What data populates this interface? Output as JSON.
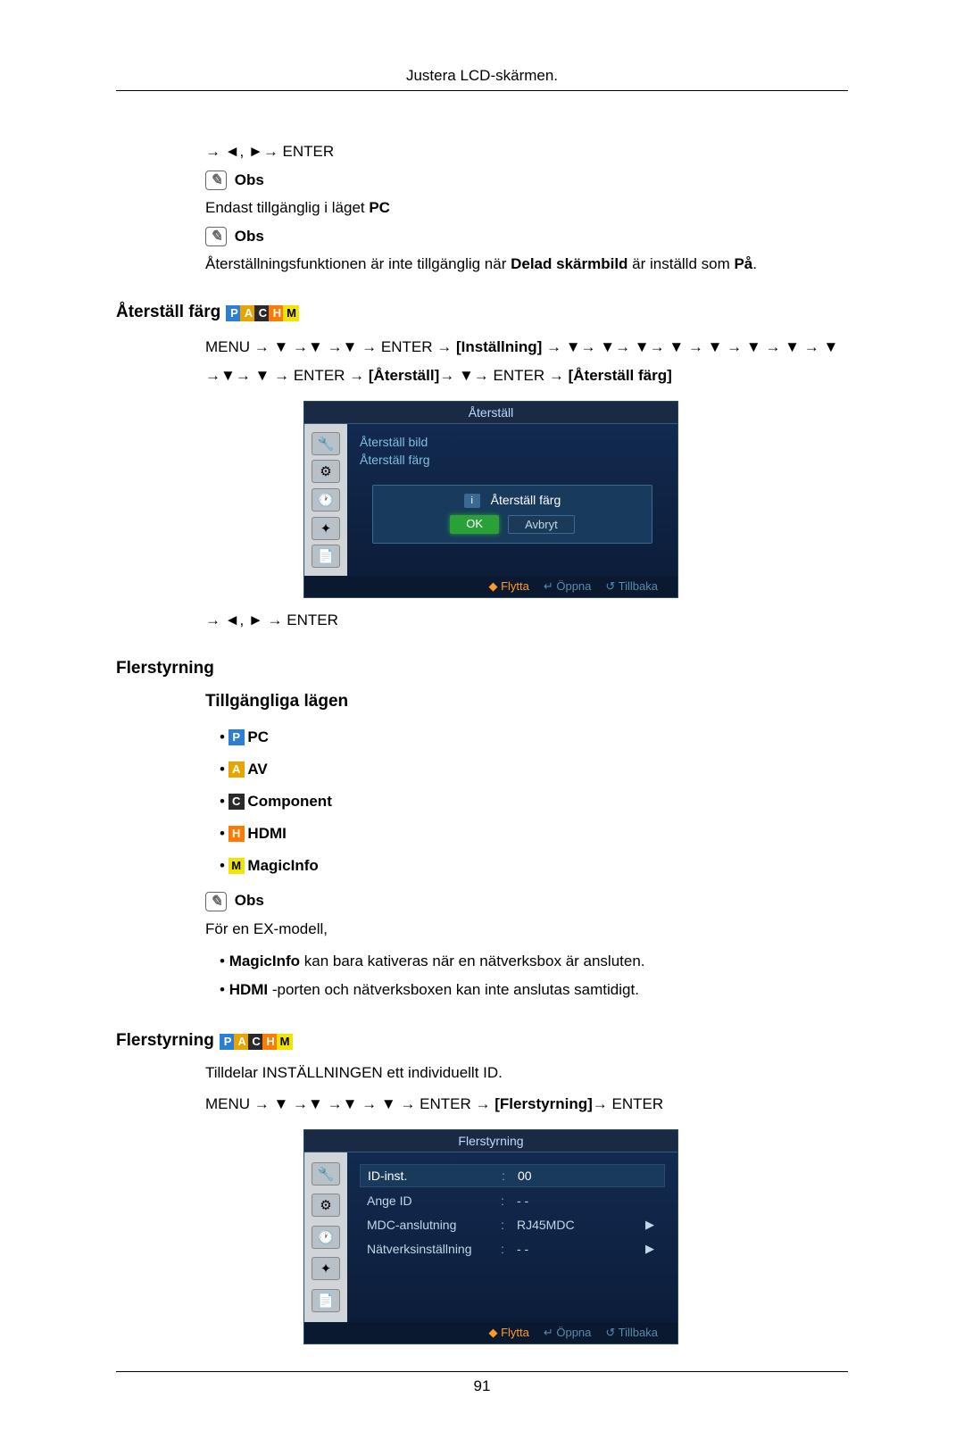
{
  "header": {
    "title": "Justera LCD-skärmen.",
    "page_number": "91"
  },
  "intro": {
    "nav": "→ ◄, ►→ ENTER",
    "obs_label": "Obs",
    "pc_line_prefix": "Endast tillgänglig i läget ",
    "pc_bold": "PC",
    "reset_text_a": "Återställningsfunktionen är inte tillgänglig när ",
    "reset_bold": "Delad skärmbild",
    "reset_text_b": " är inställd som ",
    "reset_bold2": "På",
    "reset_text_c": "."
  },
  "sec_color": {
    "title": "Återställ färg",
    "badges": [
      "P",
      "A",
      "C",
      "H",
      "M"
    ],
    "nav_line": "MENU → ▼ →▼ →▼ → ENTER → [Inställning] → ▼→ ▼→ ▼→ ▼ → ▼ → ▼ → ▼ → ▼ →▼→ ▼ → ENTER → [Återställ]→ ▼→ ENTER → [Återställ färg]",
    "nav_after": "→ ◄, ► → ENTER"
  },
  "osd1": {
    "title": "Återställ",
    "rows": [
      "Återställ bild",
      "Återställ färg"
    ],
    "dialog_title": "Återställ färg",
    "ok": "OK",
    "cancel": "Avbryt",
    "footer": [
      {
        "ic": "◆",
        "label": "Flytta",
        "hl": true
      },
      {
        "ic": "↵",
        "label": "Öppna",
        "hl": false
      },
      {
        "ic": "↺",
        "label": "Tillbaka",
        "hl": false
      }
    ]
  },
  "sec_multi_modes": {
    "title": "Flerstyrning",
    "subtitle": "Tillgängliga lägen",
    "modes": [
      {
        "badge": "P",
        "label": "PC"
      },
      {
        "badge": "A",
        "label": "AV"
      },
      {
        "badge": "C",
        "label": "Component"
      },
      {
        "badge": "H",
        "label": "HDMI"
      },
      {
        "badge": "M",
        "label": "MagicInfo"
      }
    ],
    "obs_label": "Obs",
    "ex_line": "För en EX-modell,",
    "notes": [
      {
        "bold": "MagicInfo",
        "rest": " kan bara kativeras när en nätverksbox är ansluten."
      },
      {
        "bold": "HDMI",
        "rest": " -porten och nätverksboxen kan inte anslutas samtidigt."
      }
    ]
  },
  "sec_multi": {
    "title": "Flerstyrning",
    "badges": [
      "P",
      "A",
      "C",
      "H",
      "M"
    ],
    "desc": "Tilldelar INSTÄLLNINGEN ett individuellt ID.",
    "nav": "MENU → ▼ →▼ →▼ → ▼ → ENTER → [Flerstyrning]→ ENTER"
  },
  "osd2": {
    "title": "Flerstyrning",
    "rows": [
      {
        "label": "ID-inst.",
        "value": "00",
        "sel": true,
        "arrow": false
      },
      {
        "label": "Ange ID",
        "value": "- -",
        "sel": false,
        "arrow": false
      },
      {
        "label": "MDC-anslutning",
        "value": "RJ45MDC",
        "sel": false,
        "arrow": true
      },
      {
        "label": "Nätverksinställning",
        "value": "- -",
        "sel": false,
        "arrow": true
      }
    ],
    "footer": [
      {
        "ic": "◆",
        "label": "Flytta",
        "hl": true
      },
      {
        "ic": "↵",
        "label": "Öppna",
        "hl": false
      },
      {
        "ic": "↺",
        "label": "Tillbaka",
        "hl": false
      }
    ]
  },
  "badge_colors": {
    "P": "#2c7fd4",
    "A": "#e8a400",
    "C": "#2a2a2a",
    "H": "#ff7a00",
    "M": "#f0e400"
  }
}
